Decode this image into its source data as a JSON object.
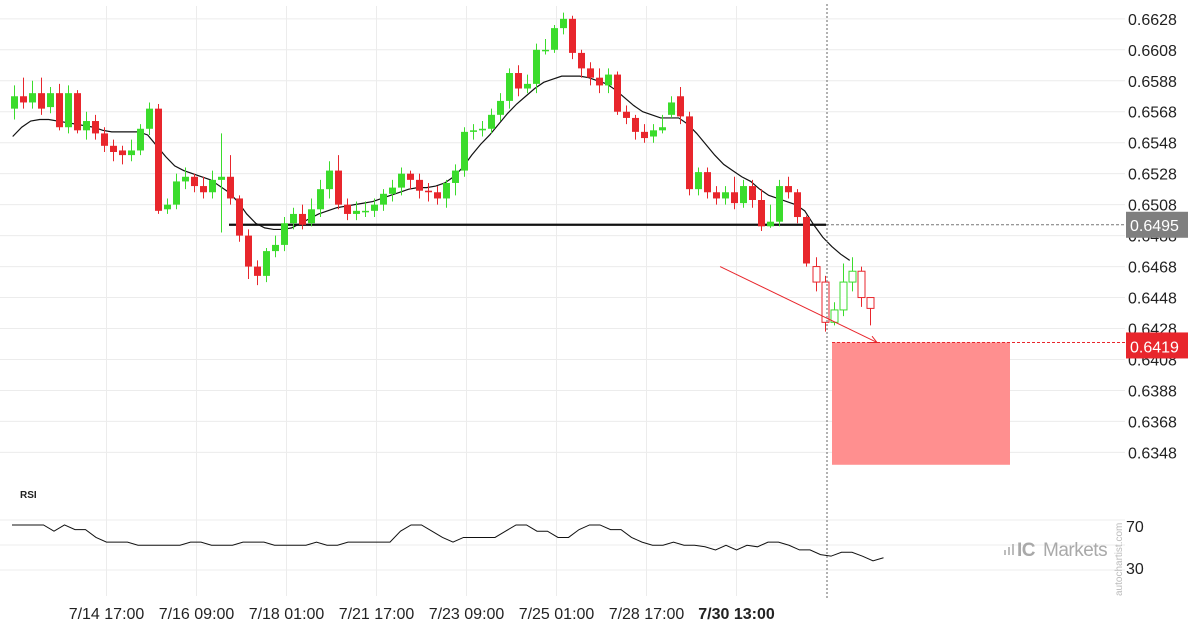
{
  "chart_data": {
    "type": "candlestick",
    "y_ticks": [
      "0.6628",
      "0.6608",
      "0.6588",
      "0.6568",
      "0.6548",
      "0.6528",
      "0.6508",
      "0.6488",
      "0.6468",
      "0.6448",
      "0.6428",
      "0.6408",
      "0.6388",
      "0.6368",
      "0.6348"
    ],
    "ylim": [
      0.6325,
      0.6635
    ],
    "x_ticks": [
      {
        "label": "7/14 17:00",
        "index": 8,
        "bold": false
      },
      {
        "label": "7/16 09:00",
        "index": 18,
        "bold": false
      },
      {
        "label": "7/18 01:00",
        "index": 28,
        "bold": false
      },
      {
        "label": "7/21 17:00",
        "index": 38,
        "bold": false
      },
      {
        "label": "7/23 09:00",
        "index": 48,
        "bold": false
      },
      {
        "label": "7/25 01:00",
        "index": 58,
        "bold": false
      },
      {
        "label": "7/28 17:00",
        "index": 68,
        "bold": false
      },
      {
        "label": "7/30 13:00",
        "index": 78,
        "bold": true
      }
    ],
    "candles": [
      [
        0.657,
        0.6578,
        0.6585,
        0.6563
      ],
      [
        0.6578,
        0.6574,
        0.659,
        0.657
      ],
      [
        0.6574,
        0.658,
        0.6588,
        0.657
      ],
      [
        0.658,
        0.657,
        0.659,
        0.6566
      ],
      [
        0.6571,
        0.658,
        0.6584,
        0.6567
      ],
      [
        0.658,
        0.6558,
        0.6586,
        0.6556
      ],
      [
        0.6558,
        0.658,
        0.6585,
        0.6554
      ],
      [
        0.658,
        0.6556,
        0.6582,
        0.6554
      ],
      [
        0.6556,
        0.6562,
        0.6568,
        0.655
      ],
      [
        0.6562,
        0.6554,
        0.6566,
        0.655
      ],
      [
        0.6554,
        0.6546,
        0.6558,
        0.6542
      ],
      [
        0.6546,
        0.6542,
        0.655,
        0.6536
      ],
      [
        0.6543,
        0.654,
        0.6546,
        0.6534
      ],
      [
        0.654,
        0.6543,
        0.655,
        0.6536
      ],
      [
        0.6543,
        0.6557,
        0.656,
        0.654
      ],
      [
        0.6557,
        0.657,
        0.6574,
        0.6553
      ],
      [
        0.657,
        0.6504,
        0.6573,
        0.6502
      ],
      [
        0.6505,
        0.6508,
        0.6512,
        0.6502
      ],
      [
        0.6508,
        0.6523,
        0.6528,
        0.6505
      ],
      [
        0.6523,
        0.6526,
        0.6532,
        0.6518
      ],
      [
        0.6526,
        0.652,
        0.6528,
        0.6516
      ],
      [
        0.652,
        0.6516,
        0.6526,
        0.6512
      ],
      [
        0.6516,
        0.6524,
        0.653,
        0.6512
      ],
      [
        0.6524,
        0.6526,
        0.6554,
        0.649
      ],
      [
        0.6526,
        0.6512,
        0.654,
        0.6508
      ],
      [
        0.6512,
        0.6488,
        0.6514,
        0.6484
      ],
      [
        0.6488,
        0.6468,
        0.6492,
        0.646
      ],
      [
        0.6468,
        0.6462,
        0.6472,
        0.6456
      ],
      [
        0.6462,
        0.6478,
        0.648,
        0.6458
      ],
      [
        0.6478,
        0.6482,
        0.6488,
        0.6474
      ],
      [
        0.6482,
        0.6496,
        0.65,
        0.6478
      ],
      [
        0.6496,
        0.6502,
        0.6506,
        0.6492
      ],
      [
        0.6502,
        0.6495,
        0.6508,
        0.6492
      ],
      [
        0.6496,
        0.6505,
        0.6512,
        0.6494
      ],
      [
        0.6505,
        0.6518,
        0.6524,
        0.65
      ],
      [
        0.6518,
        0.653,
        0.6536,
        0.6512
      ],
      [
        0.653,
        0.6508,
        0.654,
        0.6505
      ],
      [
        0.6508,
        0.6502,
        0.6512,
        0.6498
      ],
      [
        0.6502,
        0.6504,
        0.651,
        0.6498
      ],
      [
        0.6504,
        0.6504,
        0.651,
        0.65
      ],
      [
        0.6504,
        0.6508,
        0.6512,
        0.65
      ],
      [
        0.6508,
        0.6515,
        0.6518,
        0.6504
      ],
      [
        0.6515,
        0.6519,
        0.6524,
        0.651
      ],
      [
        0.6519,
        0.6528,
        0.6532,
        0.6514
      ],
      [
        0.6528,
        0.6524,
        0.653,
        0.6518
      ],
      [
        0.6524,
        0.6517,
        0.6528,
        0.6512
      ],
      [
        0.6517,
        0.6516,
        0.6522,
        0.651
      ],
      [
        0.6516,
        0.6512,
        0.652,
        0.6508
      ],
      [
        0.6512,
        0.6522,
        0.6524,
        0.6506
      ],
      [
        0.6522,
        0.653,
        0.6534,
        0.6514
      ],
      [
        0.653,
        0.6555,
        0.6558,
        0.6526
      ],
      [
        0.6555,
        0.6556,
        0.656,
        0.655
      ],
      [
        0.6556,
        0.6557,
        0.6562,
        0.6552
      ],
      [
        0.6557,
        0.6566,
        0.657,
        0.6554
      ],
      [
        0.6566,
        0.6575,
        0.658,
        0.6562
      ],
      [
        0.6575,
        0.6593,
        0.6596,
        0.657
      ],
      [
        0.6593,
        0.6583,
        0.6598,
        0.6578
      ],
      [
        0.6583,
        0.6586,
        0.6592,
        0.658
      ],
      [
        0.6586,
        0.6608,
        0.6612,
        0.658
      ],
      [
        0.6608,
        0.6608,
        0.6615,
        0.6605
      ],
      [
        0.6608,
        0.6622,
        0.6624,
        0.6606
      ],
      [
        0.6622,
        0.6628,
        0.6632,
        0.6618
      ],
      [
        0.6628,
        0.6606,
        0.663,
        0.6602
      ],
      [
        0.6606,
        0.6596,
        0.6608,
        0.659
      ],
      [
        0.6596,
        0.659,
        0.66,
        0.6585
      ],
      [
        0.659,
        0.6585,
        0.6596,
        0.658
      ],
      [
        0.6585,
        0.6592,
        0.6596,
        0.658
      ],
      [
        0.6592,
        0.6568,
        0.6594,
        0.6566
      ],
      [
        0.6568,
        0.6564,
        0.6572,
        0.656
      ],
      [
        0.6564,
        0.6555,
        0.6566,
        0.655
      ],
      [
        0.6555,
        0.6551,
        0.656,
        0.6548
      ],
      [
        0.6552,
        0.6556,
        0.656,
        0.6548
      ],
      [
        0.6556,
        0.6558,
        0.6566,
        0.6554
      ],
      [
        0.6566,
        0.6574,
        0.6578,
        0.6564
      ],
      [
        0.6578,
        0.6565,
        0.6584,
        0.656
      ],
      [
        0.6565,
        0.6518,
        0.6568,
        0.6514
      ],
      [
        0.6518,
        0.6529,
        0.6532,
        0.6514
      ],
      [
        0.6529,
        0.6516,
        0.6532,
        0.6512
      ],
      [
        0.6516,
        0.6512,
        0.652,
        0.6508
      ],
      [
        0.6512,
        0.6516,
        0.652,
        0.6508
      ],
      [
        0.6516,
        0.6509,
        0.6526,
        0.6505
      ],
      [
        0.6509,
        0.652,
        0.6524,
        0.6506
      ],
      [
        0.652,
        0.6511,
        0.6524,
        0.6506
      ],
      [
        0.6511,
        0.6494,
        0.6518,
        0.6491
      ],
      [
        0.6494,
        0.6497,
        0.6508,
        0.6493
      ],
      [
        0.6497,
        0.652,
        0.6524,
        0.6494
      ],
      [
        0.652,
        0.6516,
        0.6526,
        0.6512
      ],
      [
        0.6516,
        0.65,
        0.6518,
        0.6496
      ],
      [
        0.65,
        0.647,
        0.6501,
        0.6468
      ]
    ],
    "x_spacing_candles": 88,
    "post_candles": [
      [
        0.6468,
        0.6458,
        0.6474,
        0.6452
      ],
      [
        0.6458,
        0.6432,
        0.6462,
        0.6426
      ],
      [
        0.6432,
        0.644,
        0.6445,
        0.643
      ],
      [
        0.644,
        0.6458,
        0.647,
        0.6436
      ],
      [
        0.6458,
        0.6465,
        0.6474,
        0.6452
      ],
      [
        0.6465,
        0.6448,
        0.6468,
        0.6442
      ],
      [
        0.6448,
        0.6441,
        0.6446,
        0.643
      ]
    ],
    "post_colors": {
      "up": "#3bdc2c",
      "down": "#e8262c"
    },
    "moving_average": [
      0.6552,
      0.6558,
      0.6562,
      0.6563,
      0.6563,
      0.6562,
      0.6561,
      0.656,
      0.6559,
      0.6558,
      0.6556,
      0.6555,
      0.6555,
      0.6555,
      0.6555,
      0.6553,
      0.6546,
      0.6539,
      0.6533,
      0.653,
      0.6528,
      0.6526,
      0.6524,
      0.652,
      0.6516,
      0.651,
      0.6502,
      0.6496,
      0.6493,
      0.6492,
      0.6492,
      0.6493,
      0.6496,
      0.6499,
      0.6502,
      0.6504,
      0.6506,
      0.6507,
      0.6508,
      0.6509,
      0.651,
      0.6512,
      0.6514,
      0.6516,
      0.6518,
      0.6519,
      0.6519,
      0.652,
      0.6522,
      0.6526,
      0.6532,
      0.654,
      0.6547,
      0.6553,
      0.656,
      0.6567,
      0.6573,
      0.6578,
      0.6583,
      0.6587,
      0.6589,
      0.6591,
      0.6591,
      0.6591,
      0.659,
      0.6588,
      0.6586,
      0.6582,
      0.6577,
      0.6572,
      0.6568,
      0.6566,
      0.6564,
      0.6564,
      0.6564,
      0.656,
      0.6554,
      0.6547,
      0.654,
      0.6534,
      0.653,
      0.6526,
      0.6523,
      0.6518,
      0.6514,
      0.6512,
      0.651,
      0.6508,
      0.6504,
      0.6495,
      0.6487,
      0.6481,
      0.6476,
      0.6472
    ],
    "support_level": 0.6495,
    "support_from_index": 20,
    "support_to_index": 77,
    "current_price": "0.6419",
    "level_price": "0.6495",
    "target_zone": {
      "high": 0.6419,
      "low": 0.634
    },
    "target_arrow": {
      "from_index": 78.4,
      "from_price": 0.6468,
      "to_index": 83,
      "to_price": 0.6419
    },
    "vertical_marker_index": 78,
    "rsi": {
      "title": "RSI",
      "levels": [
        "70",
        "30"
      ],
      "values": [
        68,
        68,
        68,
        68,
        60,
        68,
        62,
        62,
        52,
        46,
        46,
        46,
        42,
        42,
        42,
        42,
        42,
        46,
        46,
        42,
        42,
        42,
        46,
        46,
        46,
        42,
        42,
        42,
        42,
        46,
        42,
        42,
        46,
        46,
        46,
        46,
        46,
        60,
        68,
        68,
        60,
        52,
        46,
        52,
        52,
        52,
        52,
        60,
        68,
        68,
        60,
        60,
        52,
        52,
        62,
        68,
        68,
        62,
        62,
        52,
        46,
        42,
        42,
        46,
        42,
        42,
        40,
        36,
        42,
        36,
        42,
        40,
        46,
        46,
        42,
        36,
        36,
        30,
        28,
        33,
        33,
        28,
        22,
        26
      ],
      "ylim": [
        0,
        100
      ]
    }
  },
  "watermark": "autochartist.com",
  "logo": {
    "prefix": "IC",
    "suffix": "Markets"
  },
  "colors": {
    "up": "#3bdc2c",
    "down": "#e8262c",
    "zone": "#ff8f8f",
    "price_tag_current": "#e8262c",
    "price_tag_level": "#7f7f7f",
    "grid": "#ececec",
    "line": "#111111"
  }
}
